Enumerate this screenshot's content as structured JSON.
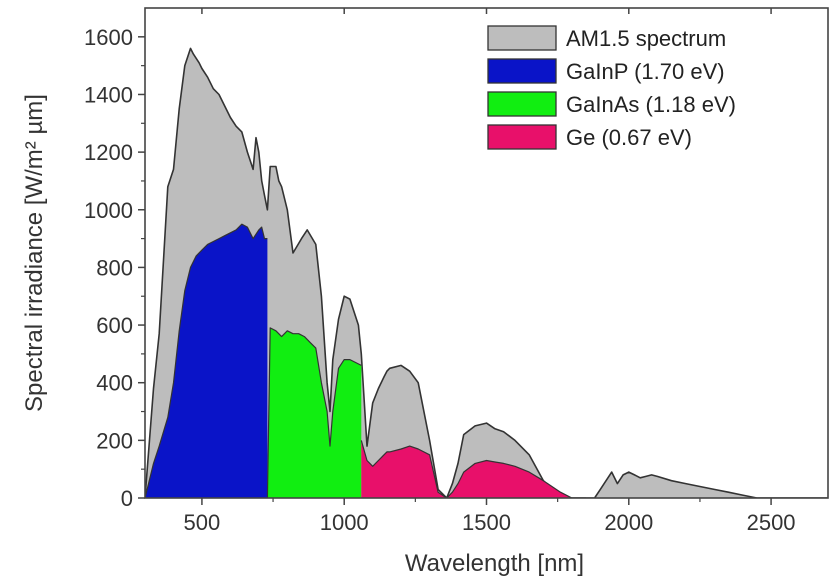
{
  "chart_data": {
    "type": "area",
    "xlabel": "Wavelength [nm]",
    "ylabel": "Spectral irradiance [W/m² µm]",
    "xlim": [
      300,
      2700
    ],
    "ylim": [
      0,
      1700
    ],
    "xticks": [
      "500",
      "1000",
      "1500",
      "2000",
      "2500"
    ],
    "yticks": [
      "0",
      "200",
      "400",
      "600",
      "800",
      "1000",
      "1200",
      "1400",
      "1600"
    ],
    "legend_position": "top-right",
    "legend": [
      "AM1.5 spectrum",
      "GaInP (1.70 eV)",
      "GaInAs (1.18 eV)",
      "Ge (0.67 eV)"
    ],
    "colors": {
      "am15": "#bdbdbd",
      "gainp": "#0a14c8",
      "gainas": "#11ee11",
      "ge": "#e8106a",
      "outline": "#333333"
    },
    "series": [
      {
        "name": "AM1.5 spectrum",
        "x": [
          300,
          330,
          350,
          380,
          400,
          420,
          440,
          460,
          470,
          490,
          500,
          520,
          540,
          560,
          580,
          600,
          620,
          640,
          660,
          680,
          690,
          700,
          710,
          720,
          730,
          740,
          760,
          770,
          780,
          800,
          820,
          850,
          870,
          900,
          920,
          940,
          950,
          960,
          980,
          1000,
          1020,
          1050,
          1060,
          1080,
          1100,
          1120,
          1140,
          1150,
          1160,
          1200,
          1230,
          1260,
          1300,
          1330,
          1360,
          1380,
          1400,
          1420,
          1460,
          1500,
          1530,
          1560,
          1600,
          1650,
          1700,
          1760,
          1800,
          1850,
          1880,
          1900,
          1940,
          1960,
          1980,
          2000,
          2020,
          2040,
          2060,
          2080,
          2100,
          2150,
          2200,
          2250,
          2300,
          2350,
          2400,
          2450,
          2500,
          2600,
          2700
        ],
        "y": [
          0,
          380,
          570,
          1080,
          1140,
          1350,
          1500,
          1560,
          1540,
          1510,
          1490,
          1460,
          1420,
          1400,
          1360,
          1320,
          1290,
          1270,
          1200,
          1140,
          1250,
          1200,
          1100,
          1050,
          1000,
          1150,
          1150,
          1100,
          1080,
          1000,
          850,
          900,
          930,
          880,
          700,
          400,
          300,
          480,
          620,
          700,
          690,
          600,
          500,
          180,
          330,
          380,
          420,
          440,
          450,
          460,
          440,
          400,
          200,
          30,
          0,
          50,
          120,
          220,
          250,
          260,
          240,
          230,
          200,
          150,
          60,
          0,
          0,
          0,
          0,
          30,
          90,
          50,
          80,
          90,
          80,
          70,
          75,
          80,
          75,
          60,
          50,
          40,
          30,
          20,
          10,
          0,
          0,
          0,
          0
        ]
      },
      {
        "name": "GaInP (1.70 eV)",
        "x": [
          300,
          330,
          350,
          380,
          400,
          420,
          440,
          460,
          480,
          500,
          520,
          540,
          560,
          580,
          600,
          620,
          640,
          660,
          680,
          700,
          710,
          720,
          730
        ],
        "y": [
          0,
          120,
          180,
          280,
          400,
          580,
          720,
          800,
          840,
          860,
          880,
          890,
          900,
          910,
          920,
          930,
          950,
          940,
          900,
          930,
          940,
          900,
          900
        ]
      },
      {
        "name": "GaInAs (1.18 eV)",
        "x": [
          730,
          740,
          760,
          780,
          800,
          820,
          840,
          860,
          880,
          900,
          920,
          940,
          950,
          960,
          980,
          1000,
          1020,
          1040,
          1060
        ],
        "y": [
          0,
          590,
          580,
          560,
          580,
          570,
          570,
          560,
          540,
          520,
          400,
          300,
          180,
          300,
          450,
          480,
          480,
          470,
          460
        ]
      },
      {
        "name": "Ge (0.67 eV)",
        "x": [
          1060,
          1080,
          1100,
          1120,
          1140,
          1150,
          1160,
          1200,
          1230,
          1260,
          1300,
          1330,
          1360,
          1380,
          1400,
          1420,
          1460,
          1500,
          1530,
          1560,
          1600,
          1650,
          1700,
          1760,
          1800,
          1850
        ],
        "y": [
          200,
          130,
          110,
          130,
          150,
          160,
          160,
          170,
          180,
          170,
          150,
          20,
          0,
          20,
          50,
          90,
          120,
          130,
          125,
          120,
          110,
          90,
          60,
          20,
          0,
          0
        ]
      }
    ]
  }
}
